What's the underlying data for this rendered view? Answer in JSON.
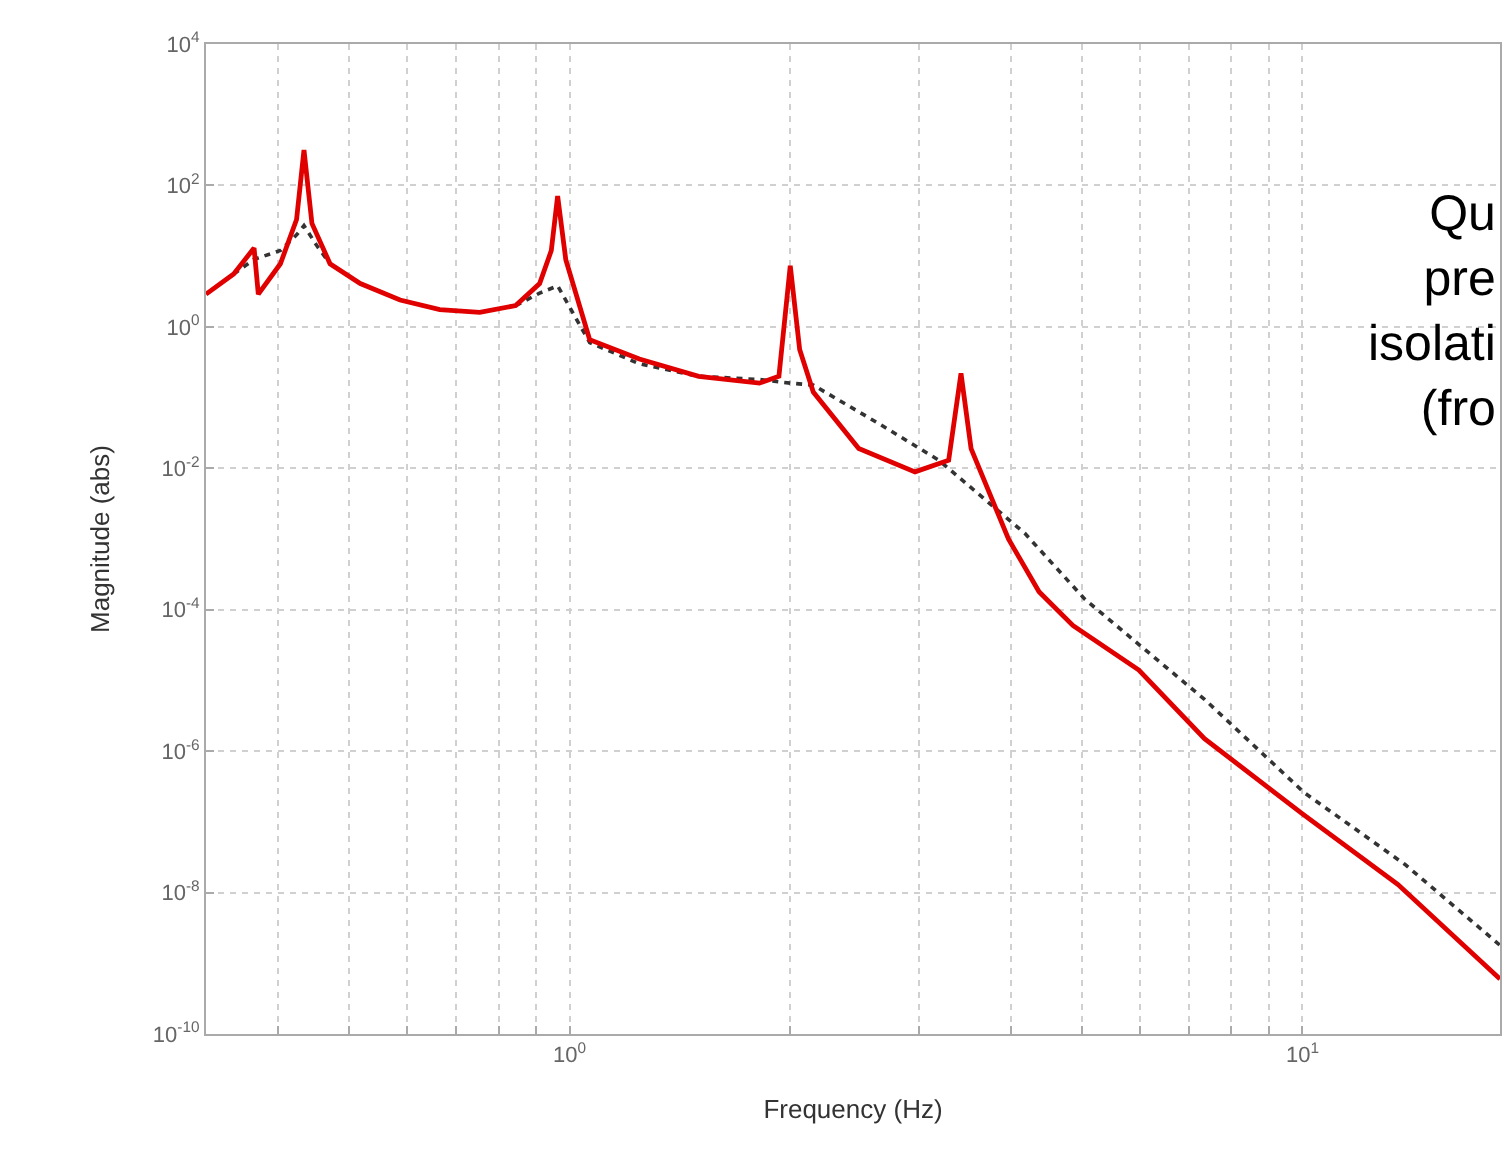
{
  "chart_data": {
    "type": "line",
    "xlabel": "Frequency (Hz)",
    "ylabel": "Magnitude (abs)",
    "log": "xy",
    "grid": true,
    "xlim": [
      0.319,
      18.6
    ],
    "ylim": [
      1e-10,
      10000
    ],
    "xticks": [
      {
        "value": 0.4,
        "label": null
      },
      {
        "value": 0.5,
        "label": null
      },
      {
        "value": 0.6,
        "label": null
      },
      {
        "value": 0.7,
        "label": null
      },
      {
        "value": 0.8,
        "label": null
      },
      {
        "value": 0.9,
        "label": null
      },
      {
        "value": 1,
        "label": "10$^{0}$"
      },
      {
        "value": 2,
        "label": null
      },
      {
        "value": 3,
        "label": null
      },
      {
        "value": 4,
        "label": null
      },
      {
        "value": 5,
        "label": null
      },
      {
        "value": 6,
        "label": null
      },
      {
        "value": 7,
        "label": null
      },
      {
        "value": 8,
        "label": null
      },
      {
        "value": 9,
        "label": null
      },
      {
        "value": 10,
        "label": "10$^{1}$"
      }
    ],
    "yticks": [
      {
        "value": 1e-10,
        "label": "10$^{-10}$"
      },
      {
        "value": 1e-08,
        "label": "10$^{-8}$"
      },
      {
        "value": 1e-06,
        "label": "10$^{-6}$"
      },
      {
        "value": 0.0001,
        "label": "10$^{-4}$"
      },
      {
        "value": 0.01,
        "label": "10$^{-2}$"
      },
      {
        "value": 1,
        "label": "10$^{0}$"
      },
      {
        "value": 100,
        "label": "10$^{2}$"
      },
      {
        "value": 10000,
        "label": "10$^{4}$"
      }
    ],
    "annotations": [
      "Qu\npre\nisolati\n(fro"
    ],
    "series": [
      {
        "color": "#333333",
        "line_style": "dotted",
        "x": [
          0.348,
          0.371,
          0.403,
          0.424,
          0.434,
          0.452,
          0.471,
          0.518,
          0.587,
          0.665,
          0.754,
          0.844,
          0.91,
          0.963,
          1.065,
          1.245,
          1.5,
          1.815,
          2.0,
          2.15,
          2.64,
          3.19,
          4.18,
          5.05,
          7.35,
          10.05,
          13.8,
          18.6
        ],
        "values": [
          5.6,
          9,
          12,
          20,
          27,
          14,
          7.8,
          null,
          null,
          null,
          null,
          2.0,
          3.0,
          3.8,
          0.6,
          0.3,
          0.2,
          0.18,
          0.16,
          0.15,
          0.043,
          0.013,
          0.0012,
          0.00014,
          5.4e-06,
          2.6e-07,
          2.5e-08,
          1.8e-09
        ]
      },
      {
        "color": "#e00000",
        "line_style": "solid",
        "x": [
          0.319,
          0.348,
          0.371,
          0.376,
          0.403,
          0.424,
          0.434,
          0.445,
          0.471,
          0.518,
          0.587,
          0.665,
          0.754,
          0.844,
          0.91,
          0.944,
          0.963,
          0.988,
          1.065,
          1.245,
          1.5,
          1.815,
          1.93,
          2.0,
          2.06,
          2.15,
          2.48,
          2.96,
          3.29,
          3.42,
          3.53,
          3.97,
          4.37,
          4.86,
          5.98,
          7.35,
          10,
          13.5,
          18.6
        ],
        "values": [
          2.9,
          5.6,
          13,
          2.9,
          7.8,
          33,
          316,
          29,
          7.8,
          4.1,
          2.4,
          1.75,
          1.6,
          2.0,
          4.1,
          12,
          71,
          8.9,
          0.66,
          0.35,
          0.2,
          0.16,
          0.2,
          7.3,
          0.48,
          0.12,
          0.019,
          0.0089,
          0.013,
          0.22,
          0.019,
          0.001,
          0.00018,
          6e-05,
          1.4e-05,
          1.5e-06,
          1.3e-07,
          1.3e-08,
          6e-10
        ]
      }
    ]
  }
}
